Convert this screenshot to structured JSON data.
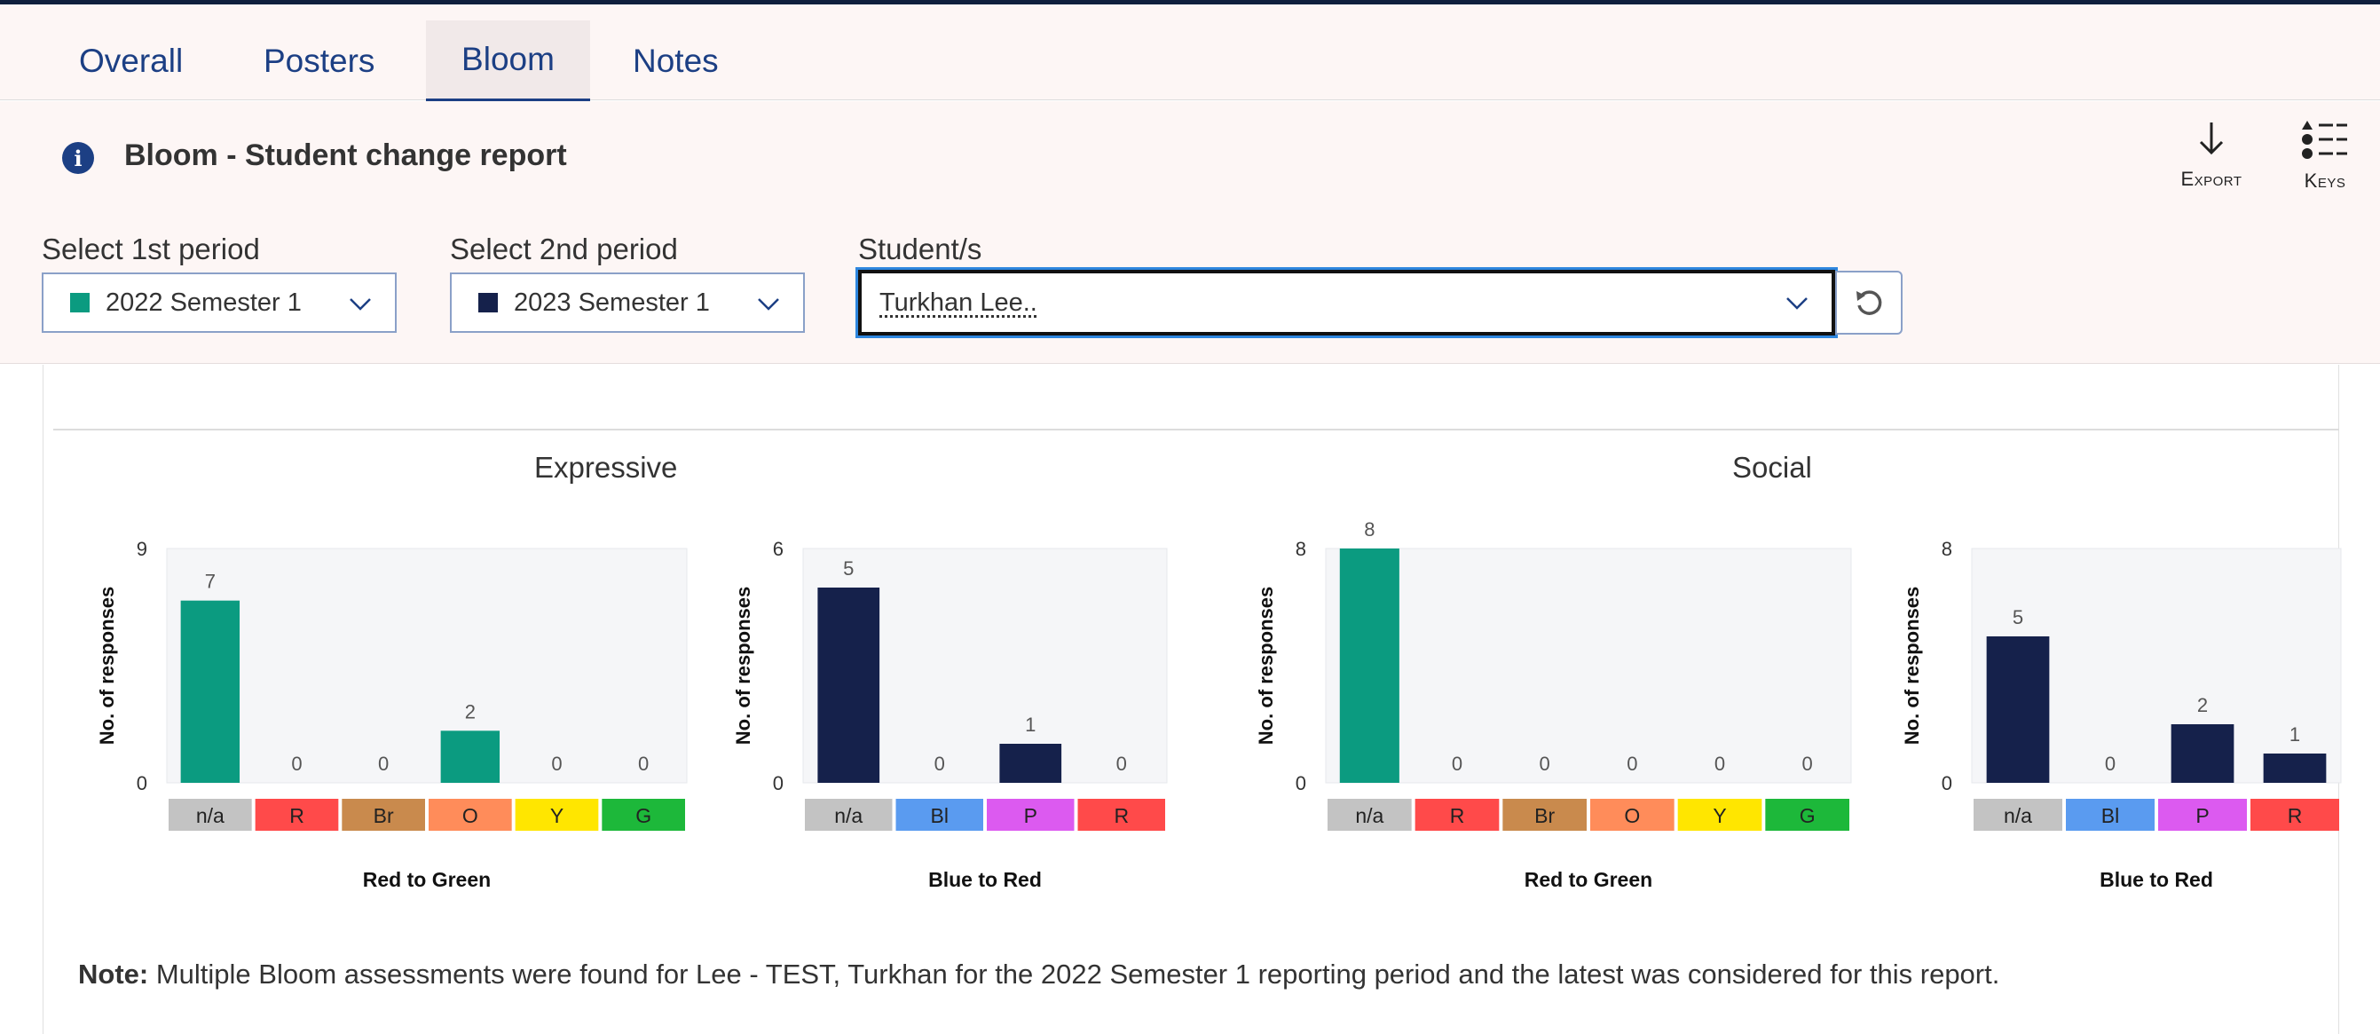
{
  "tabs": [
    {
      "label": "Overall",
      "active": false
    },
    {
      "label": "Posters",
      "active": false
    },
    {
      "label": "Bloom",
      "active": true
    },
    {
      "label": "Notes",
      "active": false
    }
  ],
  "header": {
    "title": "Bloom - Student change report",
    "export_label": "Export",
    "keys_label": "Keys"
  },
  "filters": {
    "period1": {
      "label": "Select 1st period",
      "value": "2022 Semester 1",
      "swatch": "#0b9b80"
    },
    "period2": {
      "label": "Select 2nd period",
      "value": "2023 Semester 1",
      "swatch": "#15214b"
    },
    "students": {
      "label": "Student/s",
      "value": "Turkhan Lee.."
    }
  },
  "groups": [
    {
      "title": "Expressive"
    },
    {
      "title": "Social"
    }
  ],
  "category_colors": {
    "n/a": "#c3c3c3",
    "R": "#ff4a4a",
    "Br": "#c98a4d",
    "O": "#ff8c5a",
    "Y": "#ffe600",
    "G": "#1db83a",
    "Bl": "#5a9bf0",
    "P": "#dc5af0"
  },
  "chart_data": [
    {
      "type": "bar",
      "group": "Expressive",
      "categories": [
        "n/a",
        "R",
        "Br",
        "O",
        "Y",
        "G"
      ],
      "values": [
        7,
        0,
        0,
        2,
        0,
        0
      ],
      "bar_color": "#0b9b80",
      "xlabel": "Red to Green",
      "ylabel": "No. of responses",
      "ylim": [
        0,
        9
      ],
      "yticks": [
        0,
        9
      ]
    },
    {
      "type": "bar",
      "group": "Expressive",
      "categories": [
        "n/a",
        "Bl",
        "P",
        "R"
      ],
      "values": [
        5,
        0,
        1,
        0
      ],
      "bar_color": "#15214b",
      "xlabel": "Blue to Red",
      "ylabel": "No. of responses",
      "ylim": [
        0,
        6
      ],
      "yticks": [
        0,
        6
      ]
    },
    {
      "type": "bar",
      "group": "Social",
      "categories": [
        "n/a",
        "R",
        "Br",
        "O",
        "Y",
        "G"
      ],
      "values": [
        8,
        0,
        0,
        0,
        0,
        0
      ],
      "bar_color": "#0b9b80",
      "xlabel": "Red to Green",
      "ylabel": "No. of responses",
      "ylim": [
        0,
        8
      ],
      "yticks": [
        0,
        8
      ]
    },
    {
      "type": "bar",
      "group": "Social",
      "categories": [
        "n/a",
        "Bl",
        "P",
        "R"
      ],
      "values": [
        5,
        0,
        2,
        1
      ],
      "bar_color": "#15214b",
      "xlabel": "Blue to Red",
      "ylabel": "No. of responses",
      "ylim": [
        0,
        8
      ],
      "yticks": [
        0,
        8
      ]
    }
  ],
  "note": {
    "label": "Note:",
    "text": "Multiple Bloom assessments were found for Lee - TEST, Turkhan for the 2022 Semester 1 reporting period and the latest was considered for this report."
  }
}
